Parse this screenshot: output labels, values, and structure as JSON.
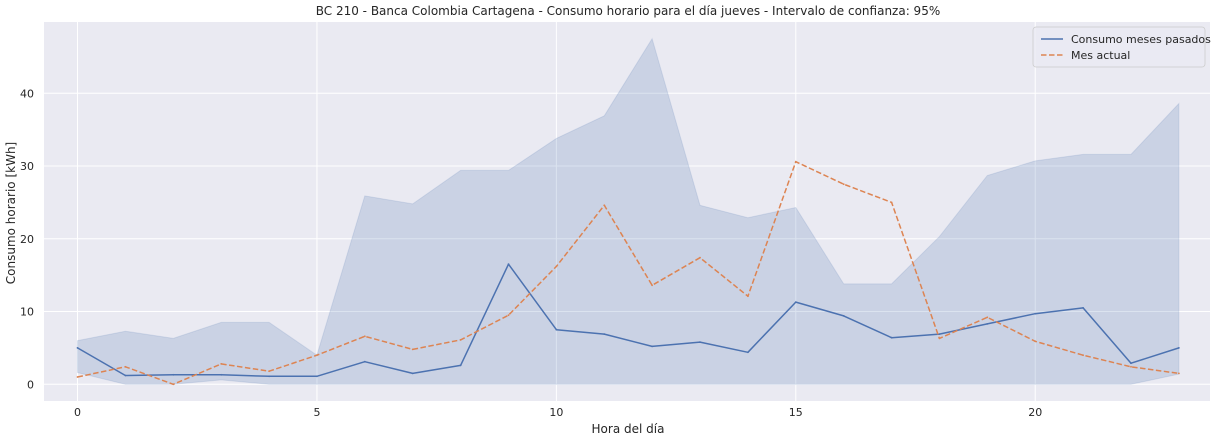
{
  "chart_data": {
    "type": "line",
    "title": "BC 210 - Banca Colombia Cartagena - Consumo horario para el día jueves - Intervalo de confianza: 95%",
    "xlabel": "Hora del día",
    "ylabel": "Consumo horario [kWh]",
    "x": [
      0,
      1,
      2,
      3,
      4,
      5,
      6,
      7,
      8,
      9,
      10,
      11,
      12,
      13,
      14,
      15,
      16,
      17,
      18,
      19,
      20,
      21,
      22,
      23
    ],
    "xlim": [
      -0.7,
      23.65
    ],
    "ylim": [
      -2.3,
      49.8
    ],
    "xticks": [
      0,
      5,
      10,
      15,
      20
    ],
    "yticks": [
      0,
      10,
      20,
      30,
      40
    ],
    "grid": true,
    "legend_position": "top-right",
    "series": [
      {
        "name": "Consumo meses pasados",
        "style": "solid",
        "color": "#4c72b0",
        "values": [
          5.0,
          1.2,
          1.3,
          1.3,
          1.1,
          1.1,
          3.1,
          1.5,
          2.6,
          16.5,
          7.5,
          6.9,
          5.2,
          5.8,
          4.4,
          11.3,
          9.4,
          6.4,
          6.9,
          8.3,
          9.7,
          10.5,
          2.9,
          5.0
        ]
      },
      {
        "name": "Mes actual",
        "style": "dashed",
        "color": "#dd8452",
        "values": [
          1.0,
          2.4,
          0.0,
          2.8,
          1.8,
          4.0,
          6.6,
          4.8,
          6.1,
          9.5,
          16.2,
          24.6,
          13.6,
          17.4,
          12.1,
          30.6,
          27.5,
          25.0,
          6.3,
          9.2,
          5.9,
          4.0,
          2.4,
          1.5
        ]
      }
    ],
    "confidence_band": {
      "series": "Consumo meses pasados",
      "level": "95%",
      "color": "#4c72b0",
      "lower": [
        1.6,
        0.0,
        0.0,
        0.6,
        0.0,
        0.0,
        0.0,
        0.0,
        0.0,
        0.0,
        0.0,
        0.0,
        0.0,
        0.0,
        0.0,
        0.0,
        0.0,
        0.0,
        0.0,
        0.0,
        0.0,
        0.0,
        0.0,
        1.4
      ],
      "upper": [
        6.0,
        7.3,
        6.3,
        8.5,
        8.5,
        4.0,
        25.9,
        24.8,
        29.4,
        29.4,
        33.8,
        36.9,
        47.5,
        24.6,
        22.9,
        24.3,
        13.8,
        13.8,
        20.3,
        28.7,
        30.7,
        31.6,
        31.6,
        38.6
      ]
    }
  }
}
